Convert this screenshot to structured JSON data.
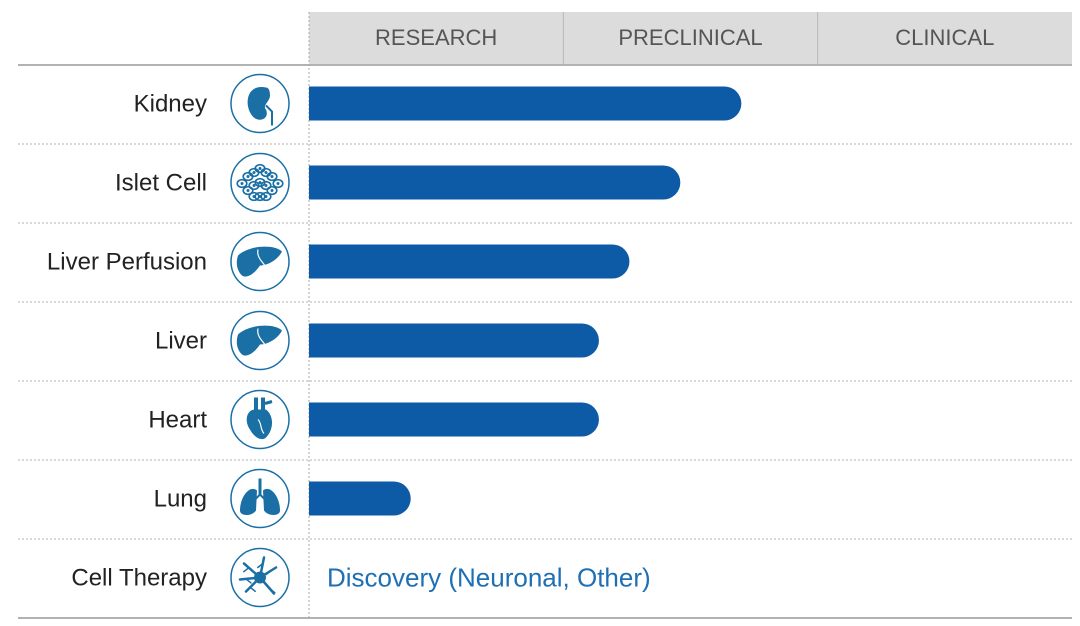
{
  "chart_data": {
    "type": "bar",
    "orientation": "horizontal",
    "stage_headers": [
      "RESEARCH",
      "PRECLINICAL",
      "CLINICAL"
    ],
    "xlim": [
      0,
      3
    ],
    "categories": [
      {
        "label": "Kidney",
        "icon": "kidney-icon",
        "value": 1.7
      },
      {
        "label": "Islet Cell",
        "icon": "islet-cell-icon",
        "value": 1.46
      },
      {
        "label": "Liver Perfusion",
        "icon": "liver-icon",
        "value": 1.26
      },
      {
        "label": "Liver",
        "icon": "liver-icon",
        "value": 1.14
      },
      {
        "label": "Heart",
        "icon": "heart-icon",
        "value": 1.14
      },
      {
        "label": "Lung",
        "icon": "lungs-icon",
        "value": 0.4
      },
      {
        "label": "Cell Therapy",
        "icon": "neuron-icon",
        "value": null,
        "note": "Discovery (Neuronal, Other)"
      }
    ]
  },
  "colors": {
    "bar": "#0d5aa7",
    "icon": "#1a6fa5",
    "header_bg": "#dcdcdc",
    "header_text": "#555555",
    "label_text": "#222222",
    "note_text": "#1f6fb5",
    "rule": "#999999"
  }
}
